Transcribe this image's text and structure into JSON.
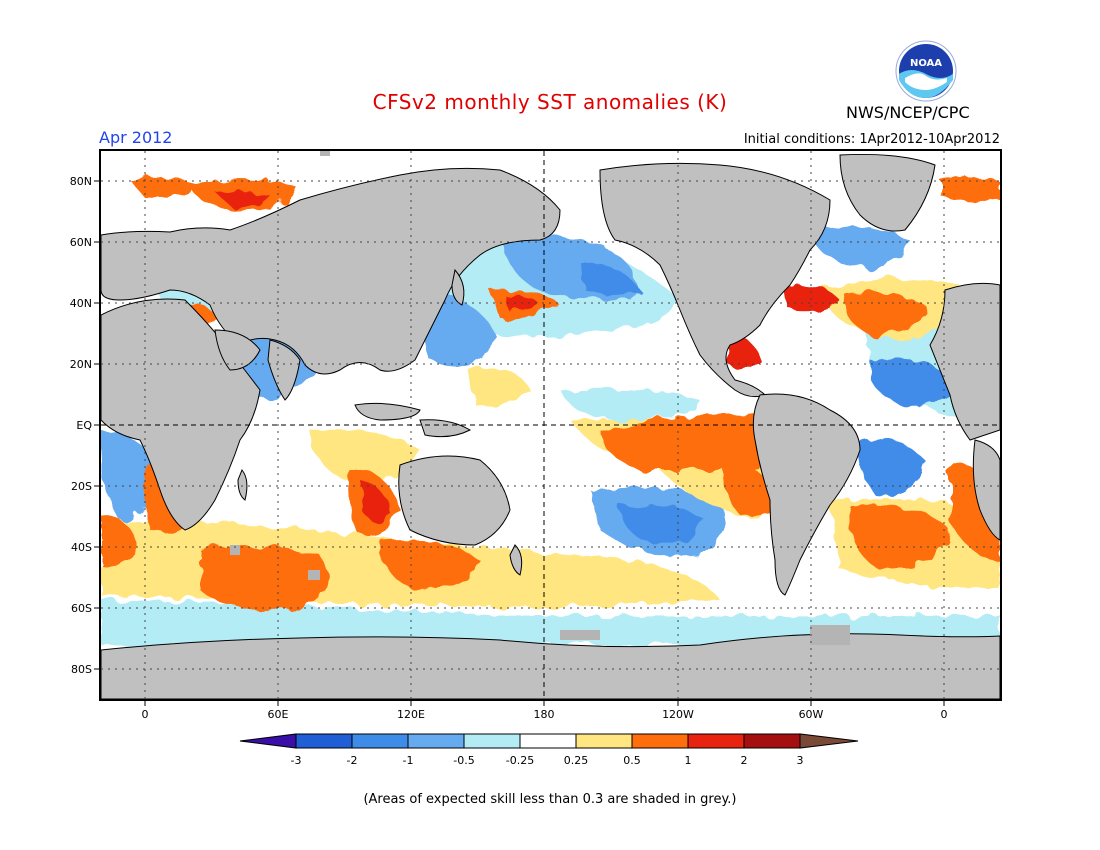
{
  "header": {
    "title": "CFSv2 monthly SST anomalies (K)",
    "agency": "NWS/NCEP/CPC",
    "logo_text": "NOAA",
    "month": "Apr 2012",
    "initial_conditions": "Initial conditions: 1Apr2012-10Apr2012"
  },
  "map": {
    "lat_labels": [
      "80N",
      "60N",
      "40N",
      "20N",
      "EQ",
      "20S",
      "40S",
      "60S",
      "80S"
    ],
    "lon_labels": [
      "0",
      "60E",
      "120E",
      "180",
      "120W",
      "60W",
      "0"
    ],
    "land_color": "#c0c0c0",
    "low_skill_color": "#b4b4b4"
  },
  "colorbar": {
    "labels": [
      "-3",
      "-2",
      "-1",
      "-0.5",
      "-0.25",
      "0.25",
      "0.5",
      "1",
      "2",
      "3"
    ],
    "colors": [
      "#3a0fa8",
      "#1f5ed4",
      "#3f8ce8",
      "#66aaf0",
      "#b3ecf5",
      "#ffffff",
      "#ffe680",
      "#ff6e0c",
      "#e8230f",
      "#a50f0f",
      "#7b4a36"
    ]
  },
  "footnote": "(Areas of expected skill less than 0.3 are shaded in grey.)"
}
